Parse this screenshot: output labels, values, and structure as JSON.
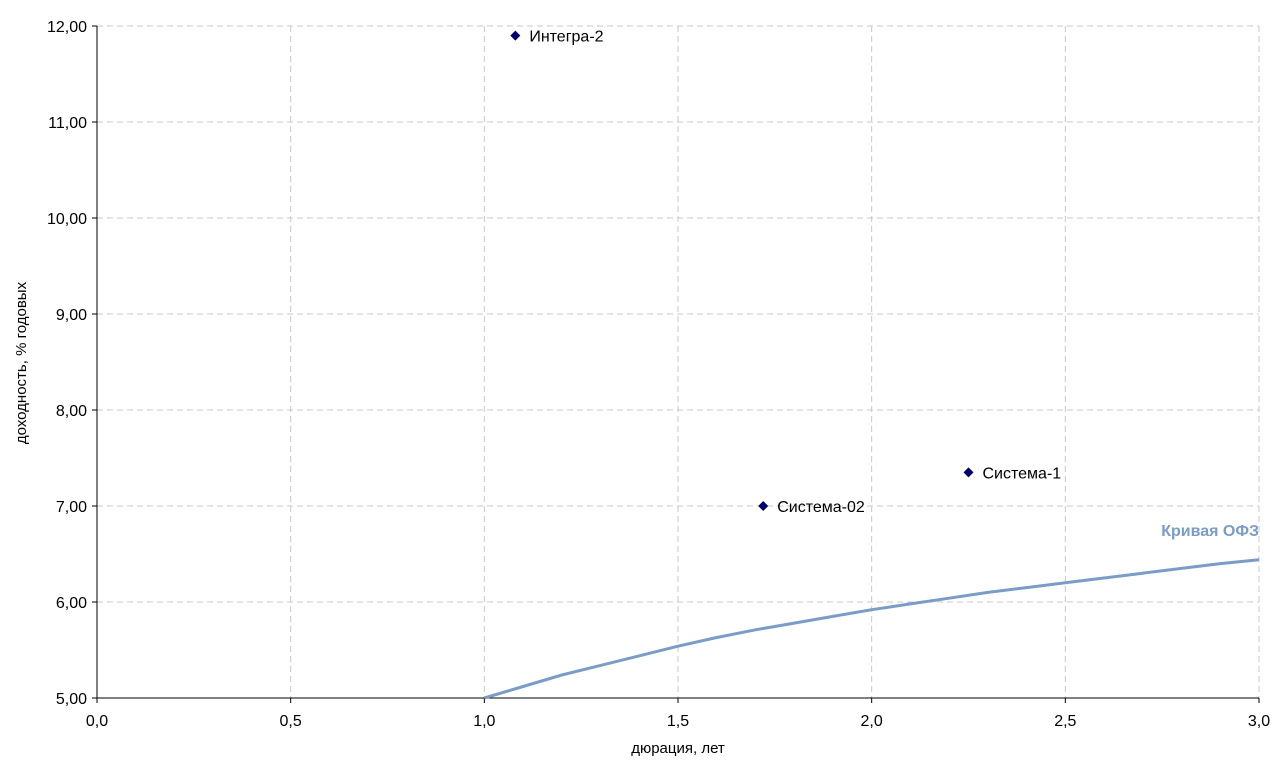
{
  "chart_data": {
    "type": "scatter",
    "xlabel": "дюрация, лет",
    "ylabel": "доходность, % годовых",
    "xlim": [
      0,
      3
    ],
    "ylim": [
      5,
      12
    ],
    "x_ticks": [
      "0,0",
      "0,5",
      "1,0",
      "1,5",
      "2,0",
      "2,5",
      "3,0"
    ],
    "y_ticks": [
      "5,00",
      "6,00",
      "7,00",
      "8,00",
      "9,00",
      "10,00",
      "11,00",
      "12,00"
    ],
    "grid": true,
    "points": [
      {
        "label": "Интегра-2",
        "x": 1.08,
        "y": 11.9
      },
      {
        "label": "Система-02",
        "x": 1.72,
        "y": 7.0
      },
      {
        "label": "Система-1",
        "x": 2.25,
        "y": 7.35
      }
    ],
    "curve": {
      "name": "Кривая ОФЗ",
      "color": "#7a9cc6",
      "points": [
        [
          1.0,
          5.0
        ],
        [
          1.1,
          5.12
        ],
        [
          1.2,
          5.24
        ],
        [
          1.3,
          5.34
        ],
        [
          1.4,
          5.44
        ],
        [
          1.5,
          5.54
        ],
        [
          1.6,
          5.63
        ],
        [
          1.7,
          5.71
        ],
        [
          1.8,
          5.78
        ],
        [
          1.9,
          5.85
        ],
        [
          2.0,
          5.92
        ],
        [
          2.1,
          5.98
        ],
        [
          2.2,
          6.04
        ],
        [
          2.3,
          6.1
        ],
        [
          2.4,
          6.15
        ],
        [
          2.5,
          6.2
        ],
        [
          2.6,
          6.25
        ],
        [
          2.7,
          6.3
        ],
        [
          2.8,
          6.35
        ],
        [
          2.9,
          6.4
        ],
        [
          3.0,
          6.44
        ]
      ]
    },
    "point_color": "#00006e"
  }
}
